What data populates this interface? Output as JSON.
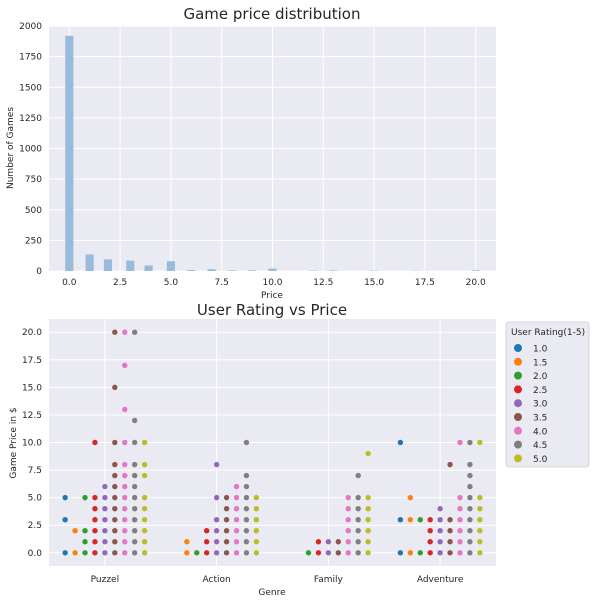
{
  "chart_data": [
    {
      "type": "bar",
      "title": "Game price distribution",
      "xlabel": "Price",
      "ylabel": "Number of Games",
      "xlim": [
        -1.0,
        21.0
      ],
      "ylim": [
        0,
        2000
      ],
      "xticks": [
        0.0,
        2.5,
        5.0,
        7.5,
        10.0,
        12.5,
        15.0,
        17.5,
        20.0
      ],
      "xtick_labels": [
        "0.0",
        "2.5",
        "5.0",
        "7.5",
        "10.0",
        "12.5",
        "15.0",
        "17.5",
        "20.0"
      ],
      "yticks": [
        0,
        250,
        500,
        750,
        1000,
        1250,
        1500,
        1750,
        2000
      ],
      "ytick_labels": [
        "0",
        "250",
        "500",
        "750",
        "1000",
        "1250",
        "1500",
        "1750",
        "2000"
      ],
      "bin_width": 0.4,
      "bins": [
        {
          "x": 0.0,
          "value": 1920
        },
        {
          "x": 1.0,
          "value": 135
        },
        {
          "x": 1.9,
          "value": 95
        },
        {
          "x": 3.0,
          "value": 85
        },
        {
          "x": 3.9,
          "value": 45
        },
        {
          "x": 5.0,
          "value": 80
        },
        {
          "x": 6.0,
          "value": 8
        },
        {
          "x": 7.0,
          "value": 15
        },
        {
          "x": 8.0,
          "value": 5
        },
        {
          "x": 9.0,
          "value": 5
        },
        {
          "x": 10.0,
          "value": 20
        },
        {
          "x": 12.0,
          "value": 3
        },
        {
          "x": 13.0,
          "value": 4
        },
        {
          "x": 15.0,
          "value": 3
        },
        {
          "x": 17.0,
          "value": 2
        },
        {
          "x": 20.0,
          "value": 5
        }
      ],
      "color": "#98bbdb"
    },
    {
      "type": "scatter",
      "title": "User Rating vs Price",
      "xlabel": "Genre",
      "ylabel": "Game Price in $",
      "categories": [
        "Puzzel",
        "Action",
        "Family",
        "Adventure"
      ],
      "ylim": [
        -1.2,
        21.2
      ],
      "yticks": [
        0,
        2.5,
        5,
        7.5,
        10,
        12.5,
        15,
        17.5,
        20
      ],
      "ytick_labels": [
        "0.0",
        "2.5",
        "5.0",
        "7.5",
        "10.0",
        "12.5",
        "15.0",
        "17.5",
        "20.0"
      ],
      "legend_title": "User Rating(1-5)",
      "legend_position": "outside-right",
      "ratings": [
        "1.0",
        "1.5",
        "2.0",
        "2.5",
        "3.0",
        "3.5",
        "4.0",
        "4.5",
        "5.0"
      ],
      "colors": [
        "#1f77b4",
        "#ff7f0e",
        "#2ca02c",
        "#d62728",
        "#9467bd",
        "#8c564b",
        "#e377c2",
        "#7f7f7f",
        "#bcbd22"
      ],
      "points": {
        "Puzzel": [
          [
            0,
            0
          ],
          [
            0,
            3
          ],
          [
            0,
            5
          ],
          [
            1,
            0
          ],
          [
            1,
            2
          ],
          [
            2,
            0
          ],
          [
            2,
            1
          ],
          [
            2,
            2
          ],
          [
            2,
            5
          ],
          [
            3,
            0
          ],
          [
            3,
            1
          ],
          [
            3,
            2
          ],
          [
            3,
            3
          ],
          [
            3,
            4
          ],
          [
            3,
            5
          ],
          [
            3,
            10
          ],
          [
            4,
            0
          ],
          [
            4,
            1
          ],
          [
            4,
            2
          ],
          [
            4,
            3
          ],
          [
            4,
            4
          ],
          [
            4,
            5
          ],
          [
            4,
            6
          ],
          [
            5,
            0
          ],
          [
            5,
            1
          ],
          [
            5,
            2
          ],
          [
            5,
            3
          ],
          [
            5,
            4
          ],
          [
            5,
            5
          ],
          [
            5,
            6
          ],
          [
            5,
            7
          ],
          [
            5,
            8
          ],
          [
            5,
            10
          ],
          [
            5,
            15
          ],
          [
            5,
            20
          ],
          [
            6,
            0
          ],
          [
            6,
            1
          ],
          [
            6,
            2
          ],
          [
            6,
            3
          ],
          [
            6,
            4
          ],
          [
            6,
            5
          ],
          [
            6,
            6
          ],
          [
            6,
            7
          ],
          [
            6,
            8
          ],
          [
            6,
            10
          ],
          [
            6,
            13
          ],
          [
            6,
            17
          ],
          [
            6,
            20
          ],
          [
            7,
            0
          ],
          [
            7,
            1
          ],
          [
            7,
            2
          ],
          [
            7,
            3
          ],
          [
            7,
            4
          ],
          [
            7,
            5
          ],
          [
            7,
            6
          ],
          [
            7,
            7
          ],
          [
            7,
            8
          ],
          [
            7,
            10
          ],
          [
            7,
            12
          ],
          [
            7,
            20
          ],
          [
            8,
            0
          ],
          [
            8,
            1
          ],
          [
            8,
            2
          ],
          [
            8,
            3
          ],
          [
            8,
            4
          ],
          [
            8,
            5
          ],
          [
            8,
            7
          ],
          [
            8,
            8
          ],
          [
            8,
            10
          ]
        ],
        "Action": [
          [
            1,
            0
          ],
          [
            1,
            1
          ],
          [
            2,
            0
          ],
          [
            3,
            0
          ],
          [
            3,
            1
          ],
          [
            3,
            2
          ],
          [
            4,
            0
          ],
          [
            4,
            1
          ],
          [
            4,
            2
          ],
          [
            4,
            3
          ],
          [
            4,
            5
          ],
          [
            4,
            8
          ],
          [
            5,
            0
          ],
          [
            5,
            1
          ],
          [
            5,
            2
          ],
          [
            5,
            3
          ],
          [
            5,
            4
          ],
          [
            5,
            5
          ],
          [
            6,
            0
          ],
          [
            6,
            1
          ],
          [
            6,
            2
          ],
          [
            6,
            3
          ],
          [
            6,
            4
          ],
          [
            6,
            5
          ],
          [
            6,
            6
          ],
          [
            7,
            0
          ],
          [
            7,
            1
          ],
          [
            7,
            2
          ],
          [
            7,
            3
          ],
          [
            7,
            4
          ],
          [
            7,
            5
          ],
          [
            7,
            6
          ],
          [
            7,
            7
          ],
          [
            7,
            10
          ],
          [
            8,
            0
          ],
          [
            8,
            1
          ],
          [
            8,
            2
          ],
          [
            8,
            3
          ],
          [
            8,
            4
          ],
          [
            8,
            5
          ]
        ],
        "Family": [
          [
            2,
            0
          ],
          [
            3,
            0
          ],
          [
            3,
            1
          ],
          [
            4,
            0
          ],
          [
            4,
            1
          ],
          [
            5,
            0
          ],
          [
            5,
            1
          ],
          [
            6,
            0
          ],
          [
            6,
            1
          ],
          [
            6,
            2
          ],
          [
            6,
            3
          ],
          [
            6,
            4
          ],
          [
            6,
            5
          ],
          [
            7,
            0
          ],
          [
            7,
            1
          ],
          [
            7,
            2
          ],
          [
            7,
            3
          ],
          [
            7,
            4
          ],
          [
            7,
            5
          ],
          [
            7,
            7
          ],
          [
            8,
            0
          ],
          [
            8,
            1
          ],
          [
            8,
            2
          ],
          [
            8,
            3
          ],
          [
            8,
            4
          ],
          [
            8,
            5
          ],
          [
            8,
            9
          ]
        ],
        "Adventure": [
          [
            0,
            0
          ],
          [
            0,
            3
          ],
          [
            0,
            10
          ],
          [
            1,
            0
          ],
          [
            1,
            3
          ],
          [
            1,
            5
          ],
          [
            2,
            0
          ],
          [
            2,
            3
          ],
          [
            3,
            0
          ],
          [
            3,
            1
          ],
          [
            3,
            2
          ],
          [
            3,
            3
          ],
          [
            4,
            0
          ],
          [
            4,
            1
          ],
          [
            4,
            2
          ],
          [
            4,
            3
          ],
          [
            4,
            4
          ],
          [
            5,
            0
          ],
          [
            5,
            1
          ],
          [
            5,
            2
          ],
          [
            5,
            3
          ],
          [
            5,
            8
          ],
          [
            6,
            0
          ],
          [
            6,
            1
          ],
          [
            6,
            2
          ],
          [
            6,
            3
          ],
          [
            6,
            4
          ],
          [
            6,
            5
          ],
          [
            6,
            10
          ],
          [
            7,
            0
          ],
          [
            7,
            1
          ],
          [
            7,
            2
          ],
          [
            7,
            3
          ],
          [
            7,
            4
          ],
          [
            7,
            5
          ],
          [
            7,
            6
          ],
          [
            7,
            7
          ],
          [
            7,
            8
          ],
          [
            7,
            10
          ],
          [
            8,
            0
          ],
          [
            8,
            1
          ],
          [
            8,
            2
          ],
          [
            8,
            3
          ],
          [
            8,
            4
          ],
          [
            8,
            5
          ],
          [
            8,
            10
          ]
        ]
      }
    }
  ]
}
